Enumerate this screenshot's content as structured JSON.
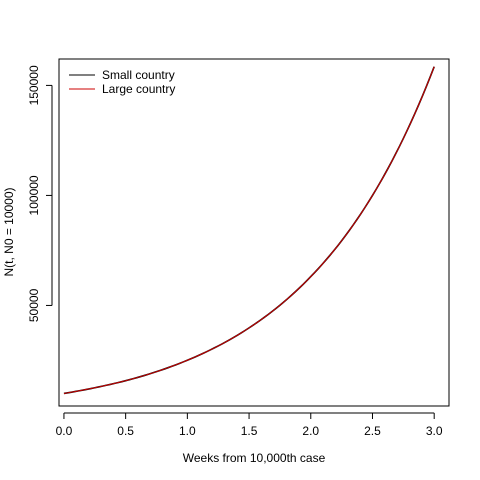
{
  "chart_data": {
    "type": "line",
    "title": "",
    "xlabel": "Weeks from 10,000th case",
    "ylabel": "N(t, N0 = 10000)",
    "xlim": [
      -0.04,
      3.12
    ],
    "ylim": [
      4300,
      162000
    ],
    "xticks": [
      0.0,
      0.5,
      1.0,
      1.5,
      2.0,
      2.5,
      3.0
    ],
    "xtick_labels": [
      "0.0",
      "0.5",
      "1.0",
      "1.5",
      "2.0",
      "2.5",
      "3.0"
    ],
    "yticks": [
      50000,
      100000,
      150000
    ],
    "ytick_labels": [
      "50000",
      "100000",
      "150000"
    ],
    "grid": false,
    "legend_position": "top-left",
    "series": [
      {
        "name": "Small country",
        "color": "#000000",
        "x": [
          0.0,
          0.25,
          0.5,
          0.75,
          1.0,
          1.25,
          1.5,
          1.75,
          2.0,
          2.25,
          2.5,
          2.75,
          3.0
        ],
        "y": [
          10000,
          12600,
          15800,
          19900,
          25100,
          31600,
          39800,
          50100,
          63100,
          79400,
          100000,
          125900,
          158500
        ]
      },
      {
        "name": "Large country",
        "color": "#cc0000",
        "x": [
          0.0,
          0.25,
          0.5,
          0.75,
          1.0,
          1.25,
          1.5,
          1.75,
          2.0,
          2.25,
          2.5,
          2.75,
          3.0
        ],
        "y": [
          10000,
          12600,
          15800,
          19900,
          25100,
          31600,
          39800,
          50100,
          63100,
          79400,
          100000,
          125900,
          158500
        ]
      }
    ]
  }
}
